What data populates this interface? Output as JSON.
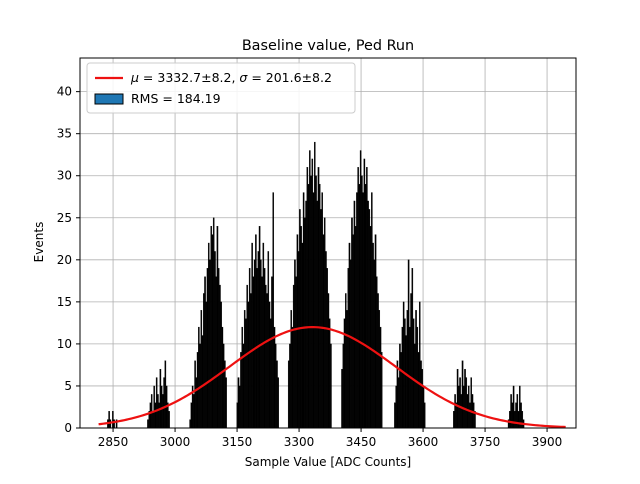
{
  "chart_data": {
    "type": "bar",
    "title": "Baseline value, Ped Run",
    "xlabel": "Sample Value [ADC Counts]",
    "ylabel": "Events",
    "xlim": [
      2770,
      3970
    ],
    "ylim": [
      0,
      44
    ],
    "xticks": [
      2850,
      3000,
      3150,
      3300,
      3450,
      3600,
      3750,
      3900
    ],
    "yticks": [
      0,
      5,
      10,
      15,
      20,
      25,
      30,
      35,
      40
    ],
    "grid": true,
    "legend_position": "top-left",
    "legend": [
      {
        "label_parts": [
          {
            "t": "μ",
            "italic": true
          },
          {
            "t": " = 3332.7±8.2, "
          },
          {
            "t": "σ",
            "italic": true
          },
          {
            "t": " = 201.6±8.2"
          }
        ],
        "kind": "line",
        "color": "#ee1111"
      },
      {
        "label_parts": [
          {
            "t": "RMS = 184.19"
          }
        ],
        "kind": "patch",
        "color": "#1f77b4"
      }
    ],
    "histogram": {
      "bin_width": 3,
      "color": "#000000",
      "clusters": [
        {
          "center": 2848,
          "values": [
            1,
            2,
            1,
            0,
            2,
            1,
            0,
            1
          ]
        },
        {
          "center": 2960,
          "values": [
            1,
            2,
            3,
            4,
            2,
            5,
            3,
            6,
            4,
            3,
            7,
            5,
            4,
            6,
            8,
            5,
            3,
            2
          ]
        },
        {
          "center": 3080,
          "values": [
            1,
            3,
            5,
            4,
            8,
            6,
            9,
            12,
            10,
            14,
            11,
            16,
            18,
            15,
            19,
            22,
            20,
            24,
            23,
            25,
            21,
            18,
            24,
            19,
            17,
            15,
            12,
            10,
            8,
            6
          ]
        },
        {
          "center": 3200,
          "values": [
            3,
            6,
            5,
            9,
            12,
            10,
            14,
            13,
            17,
            15,
            19,
            16,
            22,
            18,
            20,
            23,
            19,
            21,
            24,
            20,
            18,
            22,
            19,
            17,
            16,
            21,
            15,
            13,
            18,
            28,
            12,
            10,
            8,
            6
          ]
        },
        {
          "center": 3326,
          "values": [
            8,
            10,
            14,
            12,
            17,
            20,
            18,
            23,
            21,
            26,
            24,
            22,
            28,
            25,
            27,
            31,
            29,
            33,
            30,
            32,
            28,
            34,
            30,
            27,
            31,
            29,
            26,
            28,
            23,
            25,
            21,
            19,
            16,
            13,
            10
          ]
        },
        {
          "center": 3452,
          "values": [
            7,
            10,
            13,
            16,
            14,
            19,
            22,
            20,
            25,
            23,
            27,
            24,
            28,
            31,
            29,
            33,
            30,
            28,
            32,
            29,
            31,
            27,
            26,
            24,
            28,
            22,
            20,
            23,
            18,
            16,
            14,
            12,
            9
          ]
        },
        {
          "center": 3568,
          "values": [
            3,
            5,
            8,
            6,
            10,
            9,
            12,
            15,
            13,
            11,
            14,
            20,
            12,
            16,
            19,
            13,
            10,
            14,
            12,
            9,
            15,
            8,
            7,
            5,
            3
          ]
        },
        {
          "center": 3700,
          "values": [
            2,
            4,
            3,
            7,
            5,
            6,
            4,
            8,
            5,
            7,
            6,
            4,
            5,
            3,
            6,
            4,
            3,
            2
          ]
        },
        {
          "center": 3825,
          "values": [
            1,
            2,
            4,
            3,
            5,
            2,
            3,
            4,
            2,
            5,
            3,
            2,
            1
          ]
        }
      ]
    },
    "fit_curve": {
      "type": "gaussian",
      "mu": 3332.7,
      "sigma": 201.6,
      "amplitude": 12.0,
      "x_range": [
        2815,
        3945
      ],
      "color": "#ee1111"
    }
  }
}
